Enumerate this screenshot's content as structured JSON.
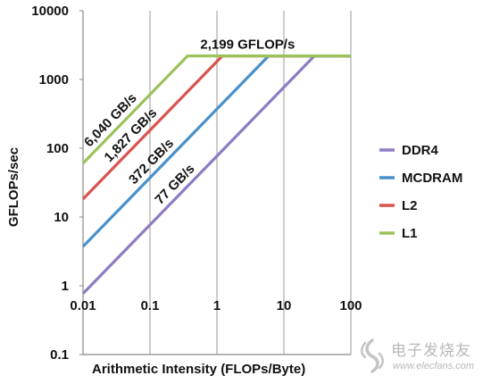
{
  "chart_data": {
    "type": "line",
    "title": "",
    "xlabel": "Arithmetic Intensity (FLOPs/Byte)",
    "ylabel": "GFLOPs/sec",
    "x_scale": "log",
    "y_scale": "log",
    "xlim": [
      0.01,
      100
    ],
    "ylim": [
      0.1,
      10000
    ],
    "x_ticks": [
      {
        "value": 0.01,
        "label": "0.01"
      },
      {
        "value": 0.1,
        "label": "0.1"
      },
      {
        "value": 1,
        "label": "1"
      },
      {
        "value": 10,
        "label": "10"
      },
      {
        "value": 100,
        "label": "100"
      }
    ],
    "y_ticks": [
      {
        "value": 0.1,
        "label": "0.1"
      },
      {
        "value": 1,
        "label": "1"
      },
      {
        "value": 10,
        "label": "10"
      },
      {
        "value": 100,
        "label": "100"
      },
      {
        "value": 1000,
        "label": "1000"
      },
      {
        "value": 10000,
        "label": "10000"
      }
    ],
    "grid": "vertical gridlines at x ticks",
    "legend_position": "right",
    "peak": {
      "value": 2199,
      "label": "2,199 GFLOP/s"
    },
    "series": [
      {
        "name": "DDR4",
        "bandwidth": 77,
        "label": "77 GB/s",
        "color": "#8e7cc3"
      },
      {
        "name": "MCDRAM",
        "bandwidth": 372,
        "label": "372 GB/s",
        "color": "#4a90c8"
      },
      {
        "name": "L2",
        "bandwidth": 1827,
        "label": "1,827 GB/s",
        "color": "#d9534f"
      },
      {
        "name": "L1",
        "bandwidth": 6040,
        "label": "6,040 GB/s",
        "color": "#9bc35a"
      }
    ]
  },
  "watermark": {
    "logo_icon": "electronic-fans-logo-icon",
    "text_cn": "电子发烧友",
    "url": "www.elecfans.com"
  }
}
